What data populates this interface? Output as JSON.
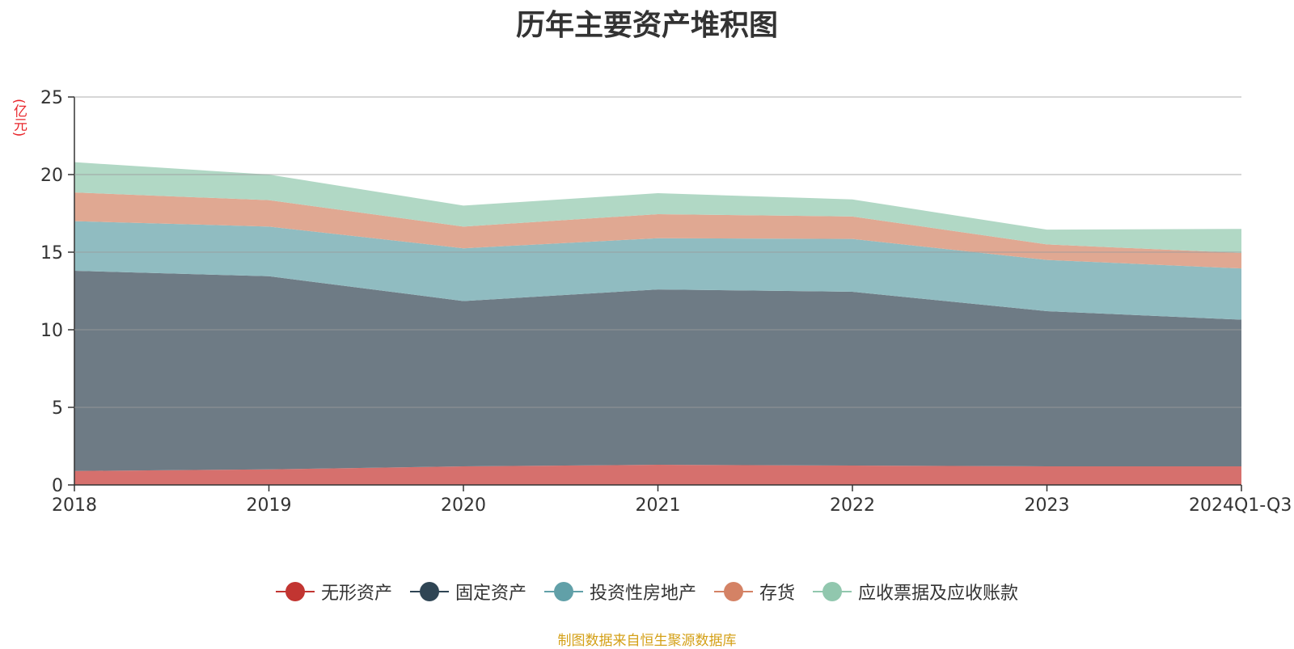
{
  "title": "历年主要资产堆积图",
  "unit_label": "(亿元)",
  "source_text": "制图数据来自恒生聚源数据库",
  "chart_data": {
    "type": "area",
    "stacked": true,
    "title": "历年主要资产堆积图",
    "ylabel": "(亿元)",
    "categories": [
      "2018",
      "2019",
      "2020",
      "2021",
      "2022",
      "2023",
      "2024Q1-Q3"
    ],
    "ylim": [
      0,
      25
    ],
    "yticks": [
      "0",
      "5",
      "10",
      "15",
      "20",
      "25"
    ],
    "grid": true,
    "legend_position": "bottom",
    "series": [
      {
        "name": "无形资产",
        "values": [
          0.9,
          1.0,
          1.2,
          1.3,
          1.25,
          1.2,
          1.2
        ],
        "color": "#c23531",
        "fill": "#d6706d"
      },
      {
        "name": "固定资产",
        "values": [
          12.9,
          12.45,
          10.65,
          11.3,
          11.2,
          10.0,
          9.45
        ],
        "color": "#2f4554",
        "fill": "#6e7b85"
      },
      {
        "name": "投资性房地产",
        "values": [
          3.2,
          3.2,
          3.4,
          3.3,
          3.4,
          3.3,
          3.3
        ],
        "color": "#61a0a8",
        "fill": "#90bcc1"
      },
      {
        "name": "存货",
        "values": [
          1.85,
          1.7,
          1.4,
          1.55,
          1.45,
          1.0,
          1.0
        ],
        "color": "#d48265",
        "fill": "#e0a892"
      },
      {
        "name": "应收票据及应收账款",
        "values": [
          1.95,
          1.65,
          1.35,
          1.35,
          1.1,
          0.95,
          1.55
        ],
        "color": "#91c7ae",
        "fill": "#b1d8c5"
      }
    ]
  }
}
